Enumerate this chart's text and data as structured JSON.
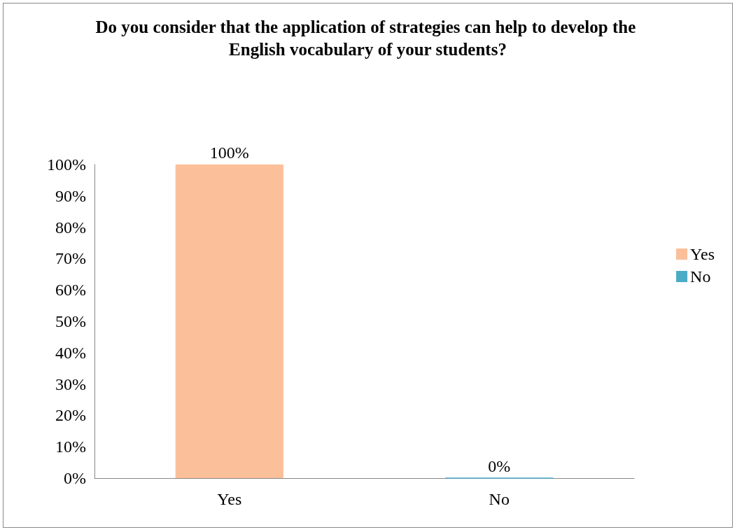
{
  "chart_data": {
    "type": "bar",
    "title": "Do you consider that the application of strategies can help to develop the English vocabulary of your students?",
    "categories": [
      "Yes",
      "No"
    ],
    "series": [
      {
        "name": "Yes",
        "color": "#fbbf99",
        "values": [
          100,
          null
        ],
        "value_labels": [
          "100%",
          null
        ]
      },
      {
        "name": "No",
        "color": "#4bacc6",
        "values": [
          null,
          0
        ],
        "value_labels": [
          null,
          "0%"
        ]
      }
    ],
    "ylim": [
      0,
      100
    ],
    "yticks": [
      {
        "value": 0,
        "label": "0%"
      },
      {
        "value": 10,
        "label": "10%"
      },
      {
        "value": 20,
        "label": "20%"
      },
      {
        "value": 30,
        "label": "30%"
      },
      {
        "value": 40,
        "label": "40%"
      },
      {
        "value": 50,
        "label": "50%"
      },
      {
        "value": 60,
        "label": "60%"
      },
      {
        "value": 70,
        "label": "70%"
      },
      {
        "value": 80,
        "label": "80%"
      },
      {
        "value": 90,
        "label": "90%"
      },
      {
        "value": 100,
        "label": "100%"
      }
    ],
    "grid": false,
    "legend": "right"
  }
}
